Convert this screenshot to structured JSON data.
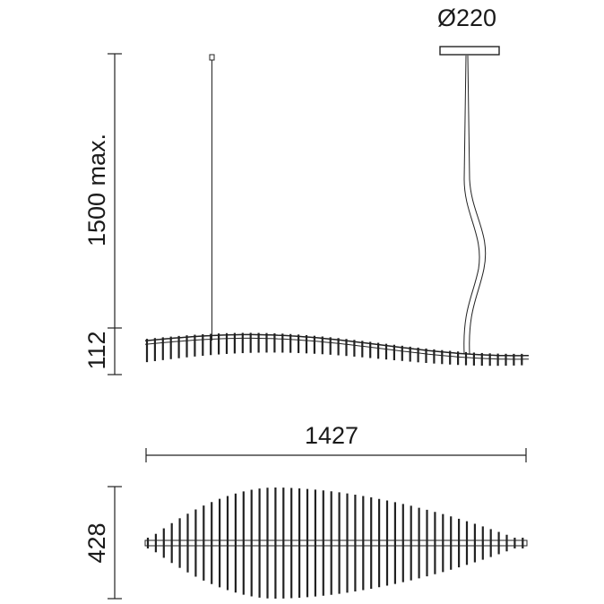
{
  "dimensions": {
    "canopy_diameter": "Ø220",
    "max_height": "1500 max.",
    "lamp_height": "112",
    "length": "1427",
    "width": "428"
  }
}
